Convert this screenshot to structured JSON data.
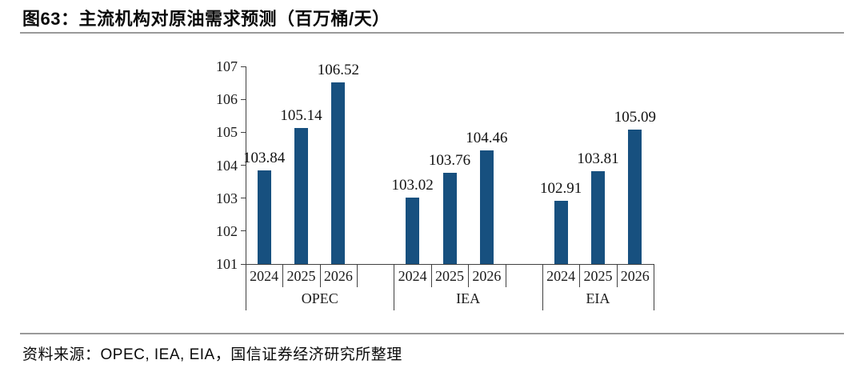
{
  "header": {
    "title": "图63：主流机构对原油需求预测（百万桶/天）"
  },
  "footer": {
    "source": "资料来源：OPEC, IEA, EIA，国信证券经济研究所整理"
  },
  "chart_data": {
    "type": "bar",
    "title": "图63：主流机构对原油需求预测（百万桶/天）",
    "unit_label": "百万桶/天",
    "categories": [
      "2024",
      "2025",
      "2026"
    ],
    "series": [
      {
        "name": "OPEC",
        "values": [
          103.84,
          105.14,
          106.52
        ]
      },
      {
        "name": "IEA",
        "values": [
          103.02,
          103.76,
          104.46
        ]
      },
      {
        "name": "EIA",
        "values": [
          102.91,
          103.81,
          105.09
        ]
      }
    ],
    "ylim": [
      101,
      107
    ],
    "yticks": [
      101,
      102,
      103,
      104,
      105,
      106,
      107
    ],
    "grid": false,
    "legend": "none",
    "data_labels": true,
    "bar_color": "#17507F",
    "axis_color": "#404040"
  }
}
